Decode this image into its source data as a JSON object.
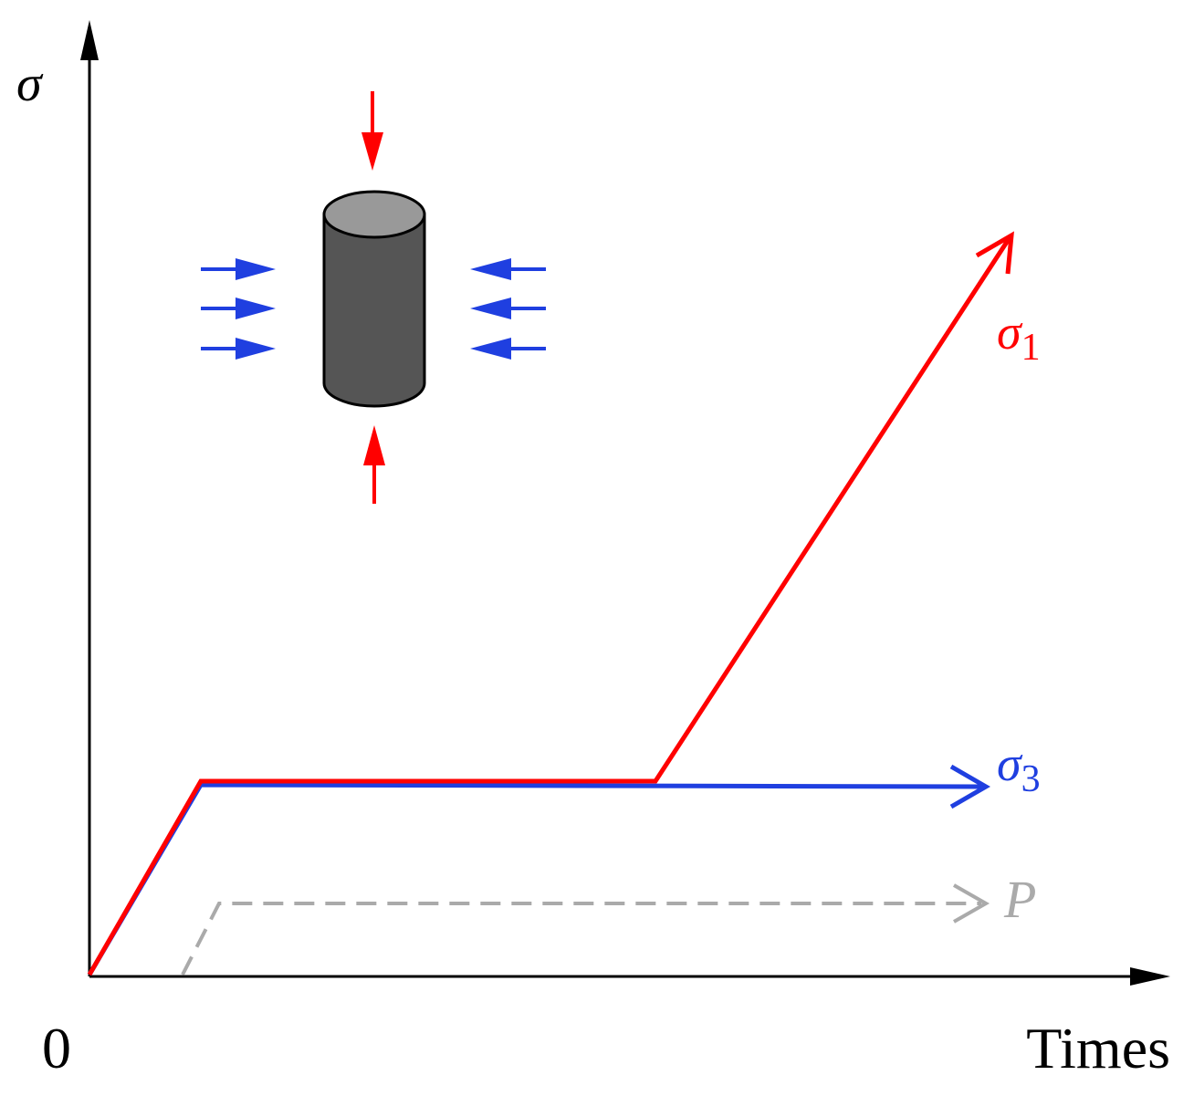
{
  "axes": {
    "y_label": "σ",
    "origin": "0",
    "x_label": "Times"
  },
  "curves": [
    {
      "symbol": "σ",
      "subscript": "1"
    },
    {
      "symbol": "σ",
      "subscript": "3"
    },
    {
      "symbol": "P"
    }
  ]
}
